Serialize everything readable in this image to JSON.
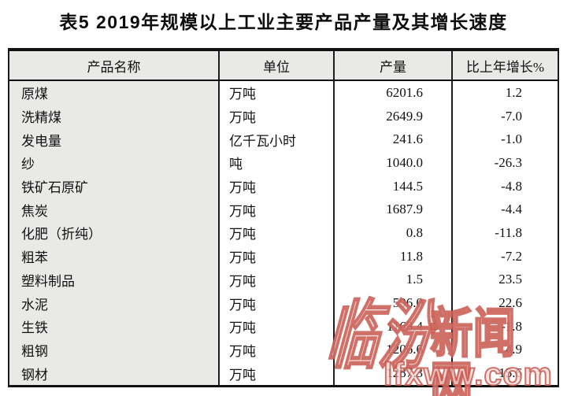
{
  "title": "表5 2019年规模以上工业主要产品产量及其增长速度",
  "table": {
    "headers": [
      "产品名称",
      "单位",
      "产量",
      "比上年增长%"
    ],
    "rows": [
      {
        "name": "原煤",
        "unit": "万吨",
        "output": "6201.6",
        "growth": "1.2"
      },
      {
        "name": "洗精煤",
        "unit": "万吨",
        "output": "2649.9",
        "growth": "-7.0"
      },
      {
        "name": "发电量",
        "unit": "亿千瓦小时",
        "output": "241.6",
        "growth": "-1.0"
      },
      {
        "name": "纱",
        "unit": "吨",
        "output": "1040.0",
        "growth": "-26.3"
      },
      {
        "name": "铁矿石原矿",
        "unit": "万吨",
        "output": "144.5",
        "growth": "-4.8"
      },
      {
        "name": "焦炭",
        "unit": "万吨",
        "output": "1687.9",
        "growth": "-4.4"
      },
      {
        "name": "化肥（折纯）",
        "unit": "万吨",
        "output": "0.8",
        "growth": "-11.8"
      },
      {
        "name": "粗苯",
        "unit": "万吨",
        "output": "11.8",
        "growth": "-7.2"
      },
      {
        "name": "塑料制品",
        "unit": "万吨",
        "output": "1.5",
        "growth": "23.5"
      },
      {
        "name": "水泥",
        "unit": "万吨",
        "output": "596.0",
        "growth": "22.6"
      },
      {
        "name": "生铁",
        "unit": "万吨",
        "output": "1168.4",
        "growth": "-1.8"
      },
      {
        "name": "粗钢",
        "unit": "万吨",
        "output": "1206.6",
        "growth": "4.9"
      },
      {
        "name": "钢材",
        "unit": "万吨",
        "output": "1287.3",
        "growth": "15.6"
      }
    ]
  },
  "watermark": {
    "logo_script": "临汾",
    "site_name": "新闻网",
    "url": "lfxww.com",
    "color": "#c7564c"
  },
  "colors": {
    "header_bg": "#e9e9e7",
    "first_column_bg": "#e9e9e7",
    "border": "#111111",
    "text": "#111111"
  }
}
